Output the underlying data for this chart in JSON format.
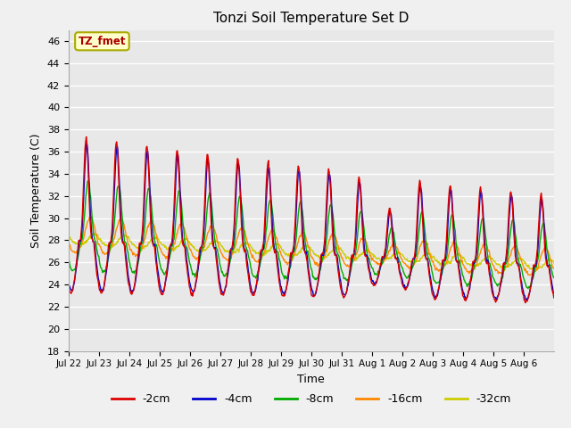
{
  "title": "Tonzi Soil Temperature Set D",
  "xlabel": "Time",
  "ylabel": "Soil Temperature (C)",
  "ylim": [
    18,
    47
  ],
  "yticks": [
    18,
    20,
    22,
    24,
    26,
    28,
    30,
    32,
    34,
    36,
    38,
    40,
    42,
    44,
    46
  ],
  "series_labels": [
    "-2cm",
    "-4cm",
    "-8cm",
    "-16cm",
    "-32cm"
  ],
  "series_colors": [
    "#dd0000",
    "#0000cc",
    "#00aa00",
    "#ff8800",
    "#cccc00"
  ],
  "annotation_text": "TZ_fmet",
  "annotation_bg": "#ffffcc",
  "annotation_border": "#aaaa00",
  "bg_color": "#e8e8e8",
  "grid_color": "#ffffff",
  "n_days": 16,
  "points_per_day": 48,
  "day_labels": [
    "Jul 22",
    "Jul 23",
    "Jul 24",
    "Jul 25",
    "Jul 26",
    "Jul 27",
    "Jul 28",
    "Jul 29",
    "Jul 30",
    "Jul 31",
    "Aug 1",
    "Aug 2",
    "Aug 3",
    "Aug 4",
    "Aug 5",
    "Aug 6"
  ]
}
